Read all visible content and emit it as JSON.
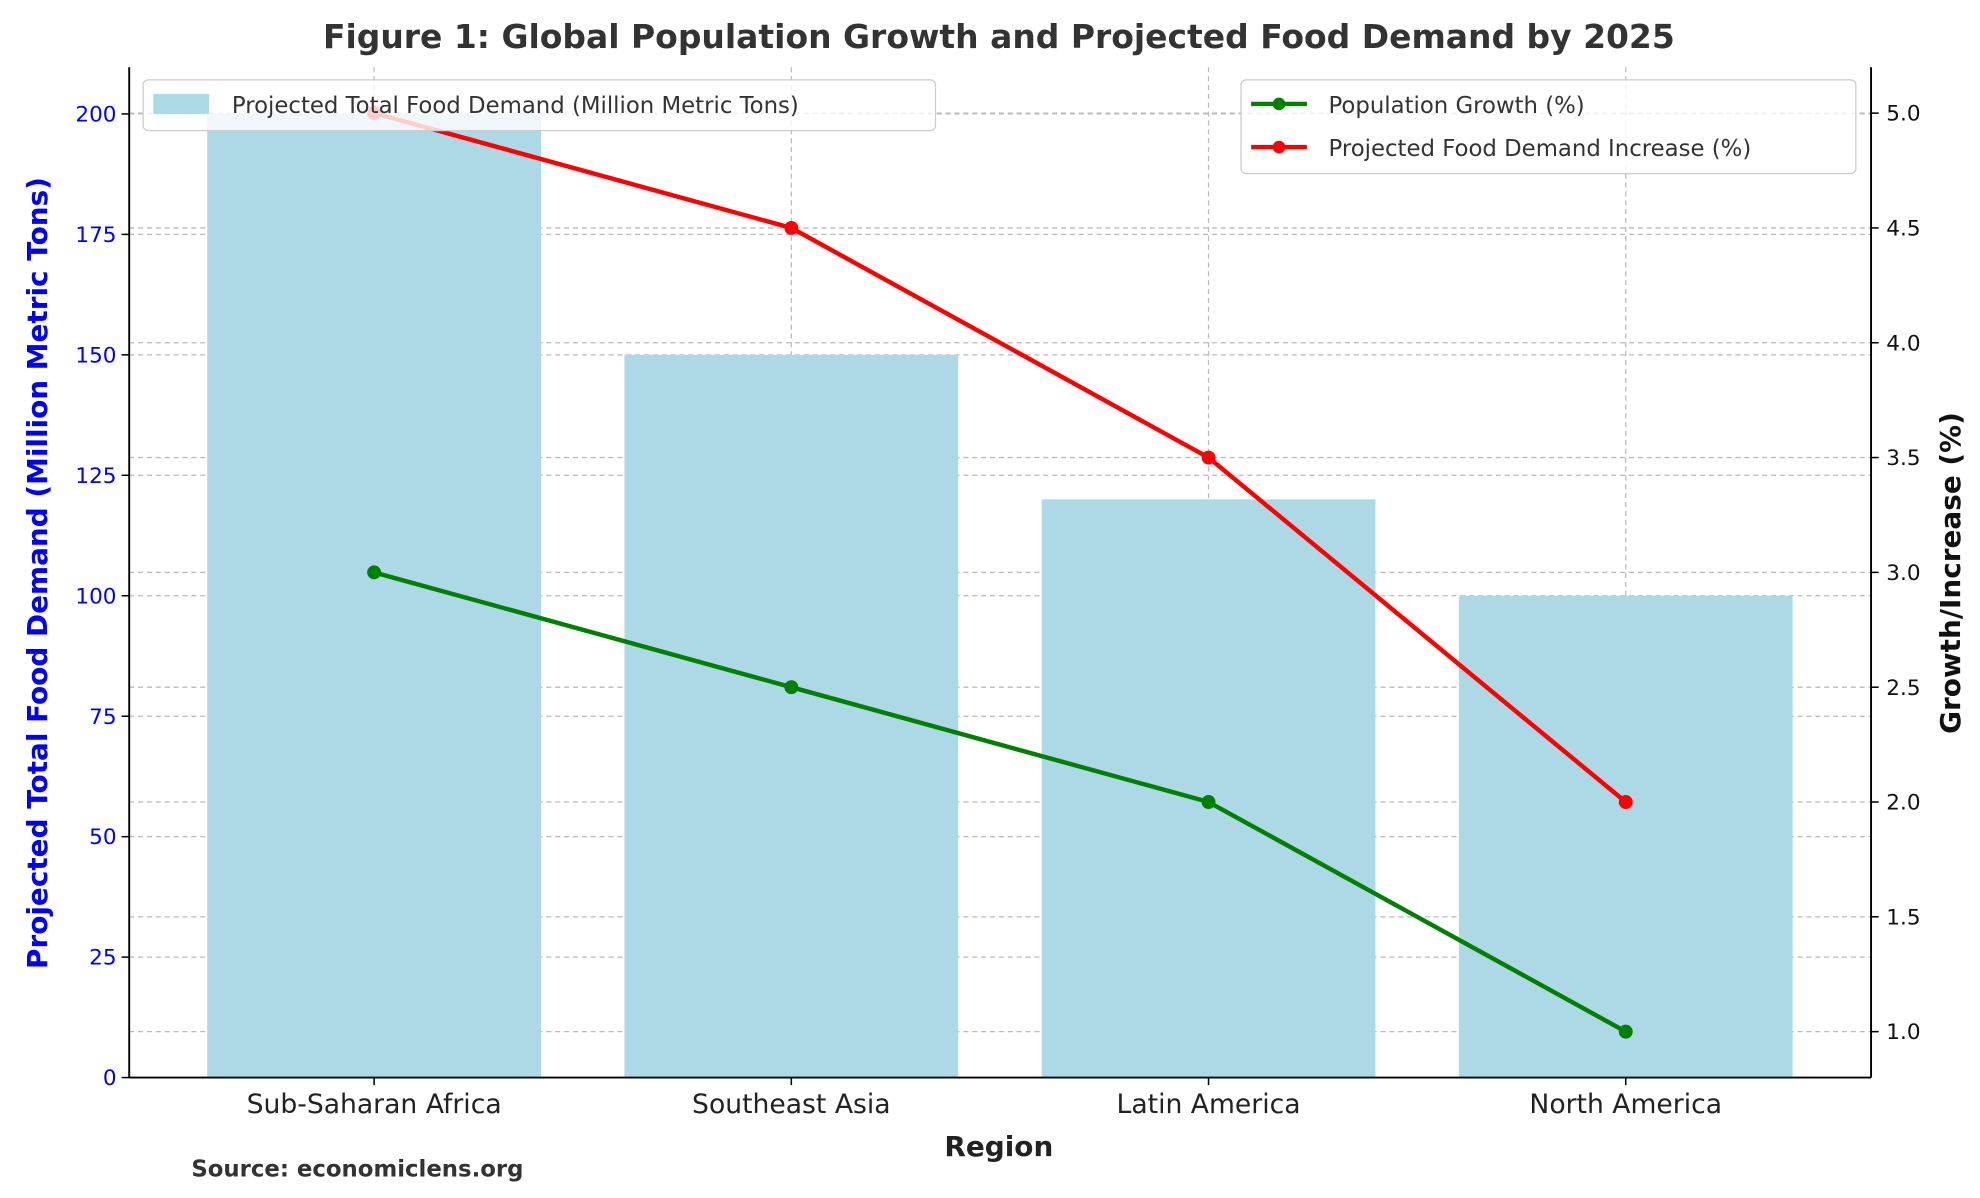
{
  "chart_data": {
    "type": "bar+line",
    "title": "Figure 1: Global Population Growth and Projected Food Demand by 2025",
    "xlabel": "Region",
    "ylabel_left": "Projected Total Food Demand (Million Metric Tons)",
    "ylabel_right": "Growth/Increase (%)",
    "categories": [
      "Sub-Saharan Africa",
      "Southeast Asia",
      "Latin America",
      "North America"
    ],
    "bar_series": {
      "name": "Projected Total Food Demand (Million Metric Tons)",
      "values": [
        200,
        150,
        120,
        100
      ],
      "color": "#add8e6"
    },
    "line_series": [
      {
        "name": "Population Growth (%)",
        "values": [
          3.0,
          2.5,
          2.0,
          1.0
        ],
        "color": "#008000"
      },
      {
        "name": "Projected Food Demand Increase (%)",
        "values": [
          5.0,
          4.5,
          3.5,
          2.0
        ],
        "color": "#ff0000"
      }
    ],
    "ylim_left": [
      0,
      209.7
    ],
    "ylim_right": [
      0.8,
      5.2
    ],
    "yticks_left": [
      "0",
      "25",
      "50",
      "75",
      "100",
      "125",
      "150",
      "175",
      "200"
    ],
    "yticks_right": [
      "1.0",
      "1.5",
      "2.0",
      "2.5",
      "3.0",
      "3.5",
      "4.0",
      "4.5",
      "5.0"
    ],
    "grid": true,
    "legend_left_placement": "top-left",
    "legend_right_placement": "top-right",
    "left_axis_color": "#0000ff"
  },
  "source": "Source: economiclens.org"
}
